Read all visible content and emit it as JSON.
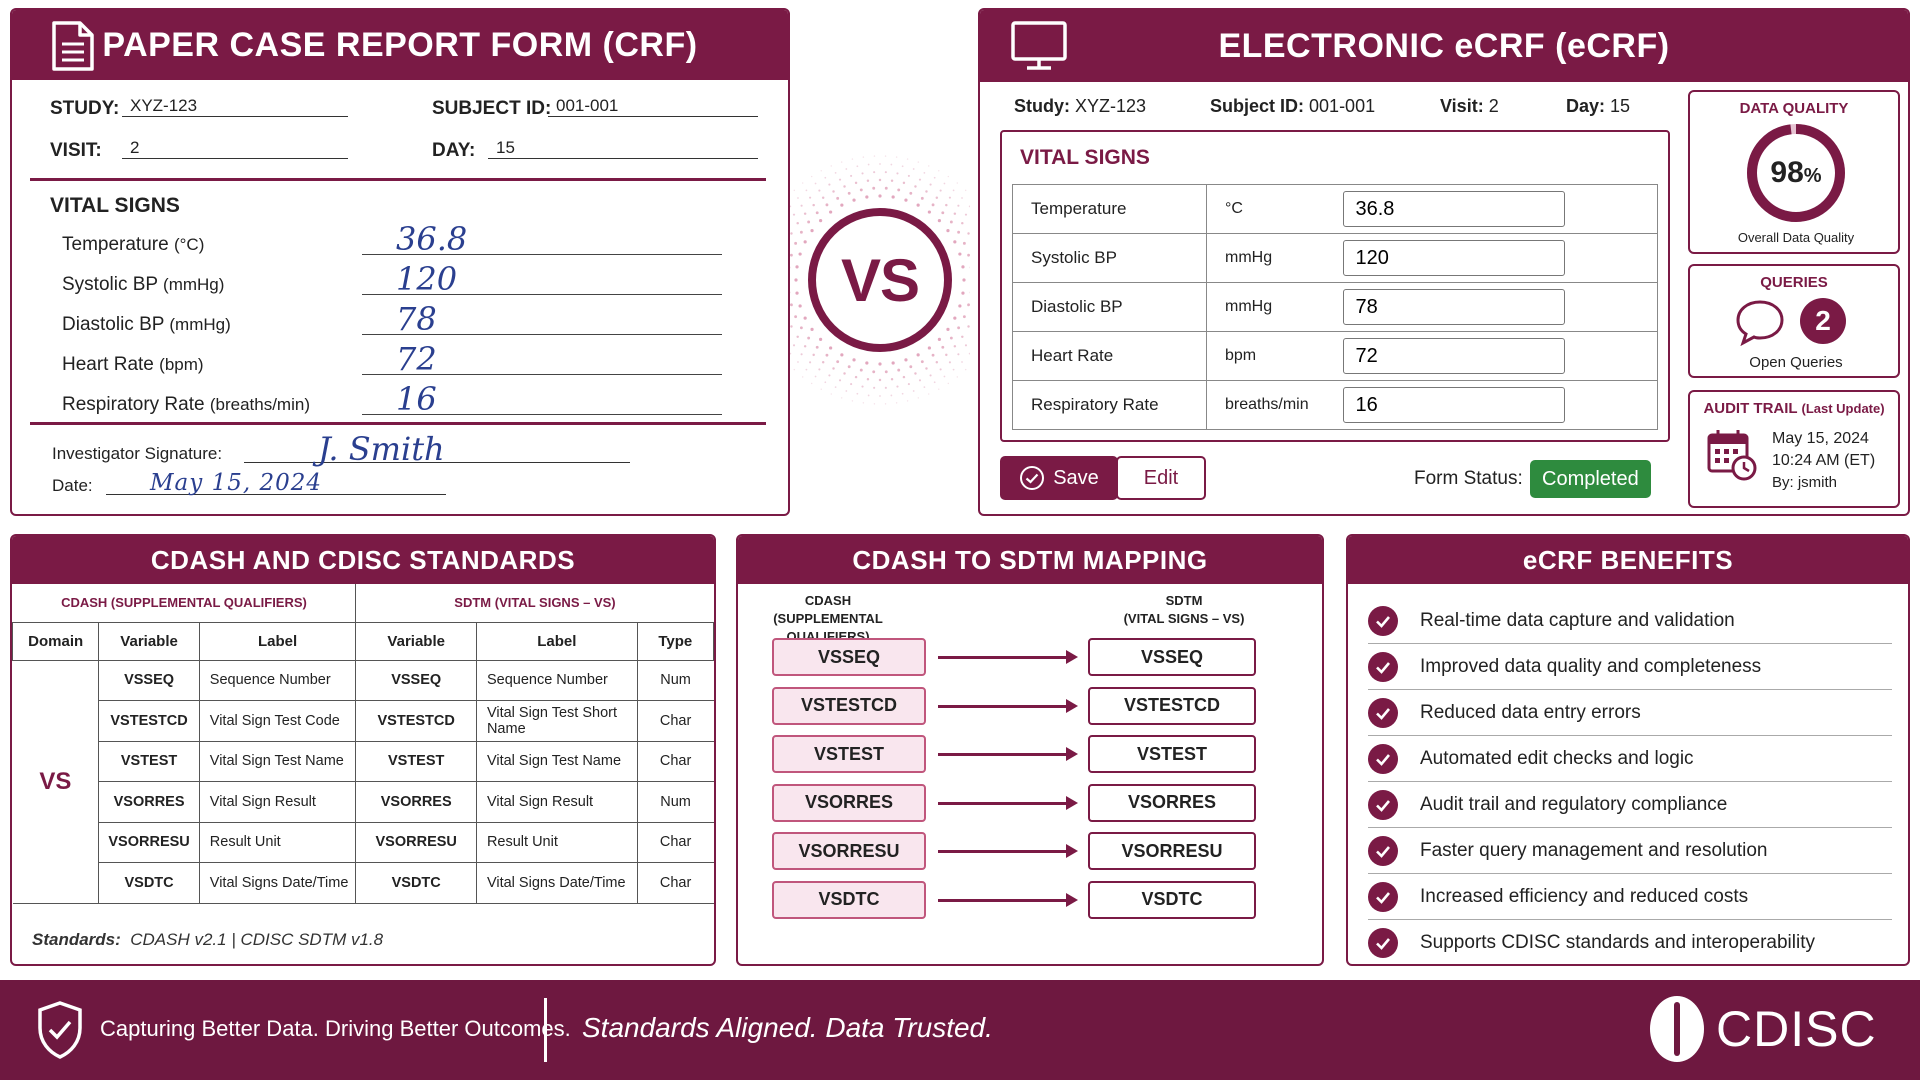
{
  "paper": {
    "title": "PAPER CASE REPORT FORM (CRF)",
    "study_label": "STUDY:",
    "study_value": "XYZ-123",
    "subject_label": "SUBJECT ID:",
    "subject_value": "001-001",
    "visit_label": "VISIT:",
    "visit_value": "2",
    "day_label": "DAY:",
    "day_value": "15",
    "section": "VITAL SIGNS",
    "rows": [
      {
        "name": "Temperature",
        "unit": "(°C)",
        "value": "36.8"
      },
      {
        "name": "Systolic BP",
        "unit": "(mmHg)",
        "value": "120"
      },
      {
        "name": "Diastolic BP",
        "unit": "(mmHg)",
        "value": "78"
      },
      {
        "name": "Heart Rate",
        "unit": "(bpm)",
        "value": "72"
      },
      {
        "name": "Respiratory Rate",
        "unit": "(breaths/min)",
        "value": "16"
      }
    ],
    "sig_label": "Investigator Signature:",
    "sig_value": "J. Smith",
    "date_label": "Date:",
    "date_value": "May 15, 2024"
  },
  "vs": "VS",
  "ecrf": {
    "title": "ELECTRONIC eCRF (eCRF)",
    "study_label": "Study:",
    "study_value": "XYZ-123",
    "subject_label": "Subject ID:",
    "subject_value": "001-001",
    "visit_label": "Visit:",
    "visit_value": "2",
    "day_label": "Day:",
    "day_value": "15",
    "section": "VITAL SIGNS",
    "rows": [
      {
        "name": "Temperature",
        "unit": "°C",
        "value": "36.8"
      },
      {
        "name": "Systolic  BP",
        "unit": "mmHg",
        "value": "120"
      },
      {
        "name": "Diastolic  BP",
        "unit": "mmHg",
        "value": "78"
      },
      {
        "name": "Heart Rate",
        "unit": "bpm",
        "value": "72"
      },
      {
        "name": "Respiratory Rate",
        "unit": "breaths/min",
        "value": "16"
      }
    ],
    "save_label": "Save",
    "edit_label": "Edit",
    "status_label": "Form Status:",
    "status_value": "Completed",
    "dq_title": "DATA QUALITY",
    "dq_value": "98",
    "dq_unit": "%",
    "dq_fraction": 0.98,
    "dq_caption": "Overall Data Quality",
    "queries_title": "QUERIES",
    "queries_count": "2",
    "queries_caption": "Open Queries",
    "audit_title": "AUDIT TRAIL",
    "audit_sub": "(Last Update)",
    "audit_date": "May 15, 2024",
    "audit_time": "10:24 AM (ET)",
    "audit_by": "By: jsmith"
  },
  "cdash": {
    "title": "CDASH AND CDISC STANDARDS",
    "group_left": "CDASH (SUPPLEMENTAL QUALIFIERS)",
    "group_right": "SDTM (VITAL SIGNS – VS)",
    "headers": [
      "Domain",
      "Variable",
      "Label",
      "Variable",
      "Label",
      "Type"
    ],
    "domain": "VS",
    "rows": [
      [
        "VSSEQ",
        "Sequence Number",
        "VSSEQ",
        "Sequence Number",
        "Num"
      ],
      [
        "VSTESTCD",
        "Vital Sign Test Code",
        "VSTESTCD",
        "Vital Sign Test Short Name",
        "Char"
      ],
      [
        "VSTEST",
        "Vital Sign Test Name",
        "VSTEST",
        "Vital Sign Test Name",
        "Char"
      ],
      [
        "VSORRES",
        "Vital Sign Result",
        "VSORRES",
        "Vital Sign Result",
        "Num"
      ],
      [
        "VSORRESU",
        "Result Unit",
        "VSORRESU",
        "Result Unit",
        "Char"
      ],
      [
        "VSDTC",
        "Vital Signs Date/Time",
        "VSDTC",
        "Vital Signs Date/Time",
        "Char"
      ]
    ],
    "standards_label": "Standards:",
    "standards_value": "CDASH v2.1  |  CDISC SDTM v1.8"
  },
  "mapping": {
    "title": "CDASH TO SDTM MAPPING",
    "left_head": "CDASH",
    "left_sub": "(SUPPLEMENTAL QUALIFIERS)",
    "right_head": "SDTM",
    "right_sub": "(VITAL SIGNS – VS)",
    "left": [
      "VSSEQ",
      "VSTESTCD",
      "VSTEST",
      "VSORRES",
      "VSORRESU",
      "VSDTC"
    ],
    "right": [
      "VSSEQ",
      "VSTESTCD",
      "VSTEST",
      "VSORRES",
      "VSORRESU",
      "VSDTC"
    ]
  },
  "benefits": {
    "title": "eCRF BENEFITS",
    "items": [
      "Real-time data capture and validation",
      "Improved data quality and completeness",
      "Reduced data entry errors",
      "Automated edit checks and logic",
      "Audit trail and regulatory compliance",
      "Faster query management and resolution",
      "Increased efficiency and reduced costs",
      "Supports CDISC standards and interoperability"
    ]
  },
  "footer": {
    "tagline1": "Capturing Better Data. Driving Better Outcomes.",
    "tagline2": "Standards Aligned. Data Trusted.",
    "logo": "CDISC"
  },
  "colors": {
    "brand": "#7a1a45",
    "status_green": "#2e8b3e"
  }
}
